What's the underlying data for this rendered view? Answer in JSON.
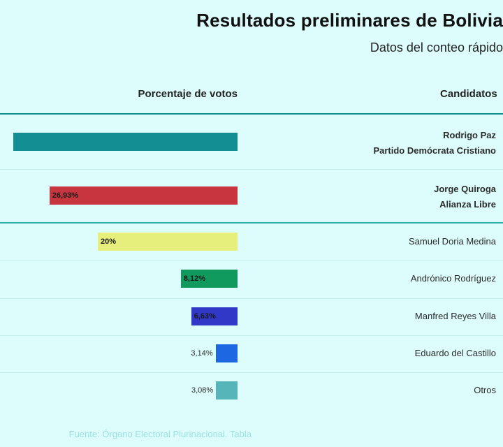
{
  "title": "Resultados preliminares de Bolivia",
  "subtitle": "Datos del conteo rápido",
  "headers": {
    "candidates": "Candidatos",
    "percent": "Porcentaje de votos"
  },
  "source": "Fuente: Órgano Electoral Plurinacional. Tabla",
  "colors": {
    "background": "#ddfdfd",
    "header_rule": "#14898c",
    "section_rule": "#2fa7a6"
  },
  "chart_data": {
    "type": "bar",
    "orientation": "horizontal",
    "xlim": [
      0,
      40
    ],
    "categories": [
      "Rodrigo Paz",
      "Jorge Quiroga",
      "Samuel Doria Medina",
      "Andrónico Rodríguez",
      "Manfred Reyes Villa",
      "Eduardo del Castillo",
      "Otros"
    ],
    "rows": [
      {
        "name": "Rodrigo Paz",
        "party": "Partido Demócrata Cristiano",
        "value": 32.14,
        "label": "",
        "color": "#138f94",
        "qualified": true
      },
      {
        "name": "Jorge Quiroga",
        "party": "Alianza Libre",
        "value": 26.93,
        "label": "26,93%",
        "color": "#c9353f",
        "qualified": true
      },
      {
        "name": "Samuel Doria Medina",
        "party": "",
        "value": 20,
        "label": "20%",
        "color": "#e7ef7c",
        "qualified": false
      },
      {
        "name": "Andrónico Rodríguez",
        "party": "",
        "value": 8.12,
        "label": "8,12%",
        "color": "#109a5e",
        "qualified": false
      },
      {
        "name": "Manfred Reyes Villa",
        "party": "",
        "value": 6.63,
        "label": "6,63%",
        "color": "#3137c7",
        "qualified": false
      },
      {
        "name": "Eduardo del Castillo",
        "party": "",
        "value": 3.14,
        "label": "3,14%",
        "color": "#1d67e2",
        "qualified": false
      },
      {
        "name": "Otros",
        "party": "",
        "value": 3.08,
        "label": "3,08%",
        "color": "#55b5b9",
        "qualified": false
      }
    ]
  }
}
